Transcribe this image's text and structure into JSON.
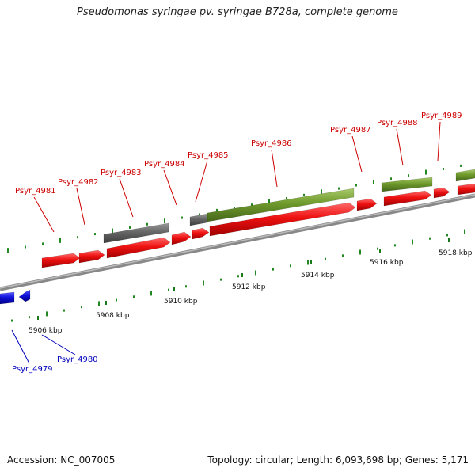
{
  "title": "Pseudomonas syringae pv. syringae B728a, complete genome",
  "footer": {
    "accession": "Accession: NC_007005",
    "topology": "Topology: circular; Length: 6,093,698 bp; Genes: 5,171"
  },
  "colors": {
    "forward_gene": "#ee1111",
    "reverse_gene": "#1111dd",
    "green_feature": "#6f9a2c",
    "gray_feature": "#666666",
    "forward_label": "#cc0000",
    "reverse_label": "#0000bb",
    "gc_skew_mark": "#228822",
    "backbone": "#888888"
  },
  "scale_ticks": [
    "5906 kbp",
    "5908 kbp",
    "5910 kbp",
    "5912 kbp",
    "5914 kbp",
    "5916 kbp",
    "5918 kbp"
  ],
  "forward_gene_labels": [
    "Psyr_4981",
    "Psyr_4982",
    "Psyr_4983",
    "Psyr_4984",
    "Psyr_4985",
    "Psyr_4986",
    "Psyr_4987",
    "Psyr_4988",
    "Psyr_4989"
  ],
  "reverse_gene_labels": [
    "Psyr_4979",
    "Psyr_4980"
  ]
}
